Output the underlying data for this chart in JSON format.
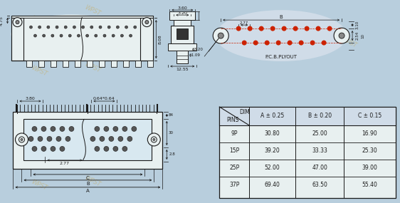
{
  "bg_color": "#b8cedd",
  "line_color": "#1a1a1a",
  "red_color": "#cc2200",
  "white_fill": "#e8f0f0",
  "table": {
    "rows": [
      [
        "9P",
        "30.80",
        "25.00",
        "16.90"
      ],
      [
        "15P",
        "39.20",
        "33.33",
        "25.30"
      ],
      [
        "25P",
        "52.00",
        "47.00",
        "39.00"
      ],
      [
        "37P",
        "69.40",
        "63.50",
        "55.40"
      ]
    ]
  },
  "watermark": "WPST"
}
